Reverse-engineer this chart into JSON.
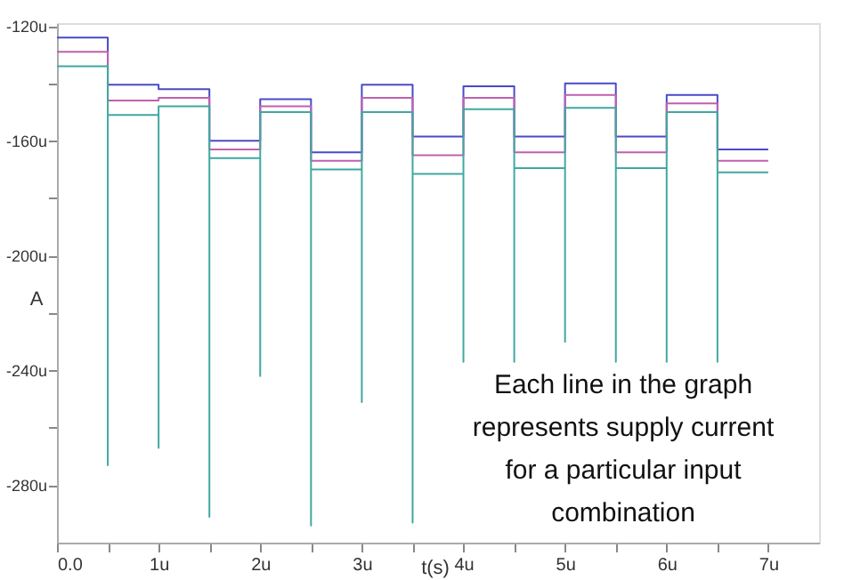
{
  "chart_data": {
    "type": "line",
    "xlabel": "t(s)",
    "ylabel": "A",
    "xlim": [
      0,
      7.5
    ],
    "ylim": [
      -300,
      -119
    ],
    "xticks": [
      {
        "value": 0,
        "label": "0.0"
      },
      {
        "value": 0.5,
        "label": null
      },
      {
        "value": 1,
        "label": "1u"
      },
      {
        "value": 1.5,
        "label": null
      },
      {
        "value": 2,
        "label": "2u"
      },
      {
        "value": 2.5,
        "label": null
      },
      {
        "value": 3,
        "label": "3u"
      },
      {
        "value": 3.5,
        "label": null
      },
      {
        "value": 4,
        "label": "4u"
      },
      {
        "value": 4.5,
        "label": null
      },
      {
        "value": 5,
        "label": "5u"
      },
      {
        "value": 5.5,
        "label": null
      },
      {
        "value": 6,
        "label": "6u"
      },
      {
        "value": 6.5,
        "label": null
      },
      {
        "value": 7,
        "label": "7u"
      }
    ],
    "yticks": [
      {
        "value": -120,
        "label": "-120u"
      },
      {
        "value": -140,
        "label": null
      },
      {
        "value": -160,
        "label": "-160u"
      },
      {
        "value": -180,
        "label": null
      },
      {
        "value": -200,
        "label": "-200u"
      },
      {
        "value": -220,
        "label": null
      },
      {
        "value": -240,
        "label": "-240u"
      },
      {
        "value": -260,
        "label": null
      },
      {
        "value": -280,
        "label": "-280u"
      }
    ],
    "grid": false,
    "marker": "none",
    "line_style": "solid",
    "series": [
      {
        "color": "#4a4ac8",
        "x": [
          0,
          0.5,
          0.5,
          1,
          1,
          1.5,
          1.5,
          2,
          2,
          2.5,
          2.5,
          3,
          3,
          3.5,
          3.5,
          4,
          4,
          4.5,
          4.5,
          5,
          5,
          5.5,
          5.5,
          6,
          6,
          6.5,
          6.5,
          7
        ],
        "values": [
          -124,
          -124,
          -140.5,
          -140.5,
          -142,
          -142,
          -160,
          -160,
          -145.5,
          -145.5,
          -164,
          -164,
          -140.5,
          -140.5,
          -158.5,
          -158.5,
          -141,
          -141,
          -158.5,
          -158.5,
          -140,
          -140,
          -158.5,
          -158.5,
          -144,
          -144,
          -163,
          -163
        ]
      },
      {
        "color": "#c060b0",
        "x": [
          0,
          0.5,
          0.5,
          1,
          1,
          1.5,
          1.5,
          2,
          2,
          2.5,
          2.5,
          3,
          3,
          3.5,
          3.5,
          4,
          4,
          4.5,
          4.5,
          5,
          5,
          5.5,
          5.5,
          6,
          6,
          6.5,
          6.5,
          7
        ],
        "values": [
          -129,
          -129,
          -146,
          -146,
          -145,
          -145,
          -163,
          -163,
          -148,
          -148,
          -167,
          -167,
          -145,
          -145,
          -165,
          -165,
          -145,
          -145,
          -164,
          -164,
          -144,
          -144,
          -164,
          -164,
          -147,
          -147,
          -167,
          -167
        ]
      },
      {
        "color": "#40a8a0",
        "x": [
          0,
          0.5,
          0.5,
          0.5,
          1,
          1,
          1,
          1.5,
          1.5,
          1.5,
          2,
          2,
          2,
          2.5,
          2.5,
          2.5,
          3,
          3,
          3,
          3.5,
          3.5,
          3.5,
          4,
          4,
          4,
          4.5,
          4.5,
          4.5,
          5,
          5,
          5,
          5.5,
          5.5,
          5.5,
          6,
          6,
          6,
          6.5,
          6.5,
          6.5,
          7
        ],
        "values": [
          -134,
          -134,
          -273,
          -151,
          -151,
          -267,
          -148,
          -148,
          -291,
          -166,
          -166,
          -242,
          -150,
          -150,
          -294,
          -170,
          -170,
          -251,
          -150,
          -150,
          -293,
          -171.5,
          -171.5,
          -237,
          -149,
          -149,
          -237,
          -169.5,
          -169.5,
          -230,
          -148.5,
          -148.5,
          -237,
          -169.5,
          -169.5,
          -237,
          -150,
          -150,
          -237,
          -171,
          -171
        ]
      }
    ],
    "annotations": [
      "Each line in the graph\nrepresents supply current\nfor a particular input\ncombination"
    ]
  }
}
